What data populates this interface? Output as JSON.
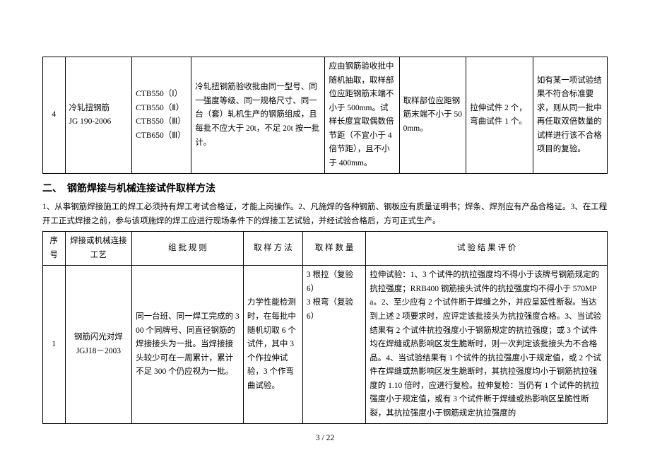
{
  "table1": {
    "row": {
      "index": "4",
      "name_line1": "冷轧扭钢筋",
      "name_line2": "JG 190-2006",
      "types_line1": "CTB550（Ⅰ）",
      "types_line2": "CTB550（Ⅱ）",
      "types_line3": "CTB550（Ⅲ）",
      "types_line4": "CTB650（Ⅲ）",
      "group_rule": "冷轧扭钢筋验收批由同一型号、同一强度等级、同一规格尺寸、同一台（套）轧机生产的钢筋组成，且每批不应大于 20t，不足 20t 按一批计。",
      "sampling_method": "应由钢筋验收批中随机抽取，取样部位应距钢筋末端不小于 500mm。试样长度宜取偶数倍节距（不宜小于 4 倍节距），且不小于 400mm。",
      "sampling_loc": "取样部位应距钢筋末端不小于 500mm。",
      "sample_qty": "拉伸试件 2 个，弯曲试件 1 个。",
      "result_eval": "如有某一项试验结果不符合标准要求，则从同一批中再任取双倍数量的试样进行该不合格项目的复验。"
    }
  },
  "section2_title": "二、　钢筋焊接与机械连接试件取样方法",
  "section2_intro": "1、从事钢筋焊接施工的焊工必须持有焊工考试合格证，才能上岗操作。2、凡施焊的各种钢筋、钢板应有质量证明书；焊条、焊剂应有产品合格证。3、在工程开工正式焊接之前，参与该项施焊的焊工应进行现场条件下的焊接工艺试验，并经试验合格后，方可正式生产。",
  "table2": {
    "headers": {
      "h1": "序号",
      "h2": "焊接或机械连接工艺",
      "h3": "组 批 规 则",
      "h4": "取 样 方 法",
      "h5": "取 样 数 量",
      "h6": "试 验 结 果 评 价"
    },
    "row": {
      "index": "1",
      "name_line1": "钢筋闪光对焊",
      "name_line2": "JGJ18－2003",
      "group_rule": "同一台班、同一焊工完成的 300 个同牌号、同直径钢筋的焊接接头为一批。当焊接接头较少可在一周累计，累计不足 300 个仍应视为一批。",
      "sampling_method": "力学性能检测时，在每批中随机切取 6 个试件，其中 3 个作拉伸试验，3 个作弯曲试验。",
      "sampling_qty_line1": "3 根拉（复验 6）",
      "sampling_qty_line2": "3 根弯（复验 6）",
      "result_eval": "拉伸试验：1、3 个试件的抗拉强度均不得小于该牌号钢筋规定的抗拉强度；RRB400 钢筋接头试件的抗拉强度均不得小于 570MPa。2、至少应有 2 个试件断于焊缝之外，并应呈延性断裂。当达到上述 2 项要求时，应评定该批接头为抗拉强度合格。3、当试验结果有 2 个试件抗拉强度小于钢筋规定的抗拉强度；或 3 个试件均在焊缝或热影响区发生脆断时，则一次判定该批接头为不合格品。4、当试验结果有 1 个试件的抗拉强度小于规定值，或 2 个试件在焊缝或热影响区发生脆断时，其抗拉强度均小于钢筋抗拉强度的 1.10 倍时，应进行复检。拉伸复检：当仍有 1 个试件的抗拉强度小于规定值，或有 3 个试件断于焊缝或热影响区呈脆性断裂，其抗拉强度小于钢筋规定抗拉强度的"
    }
  },
  "footer": "3 / 22"
}
